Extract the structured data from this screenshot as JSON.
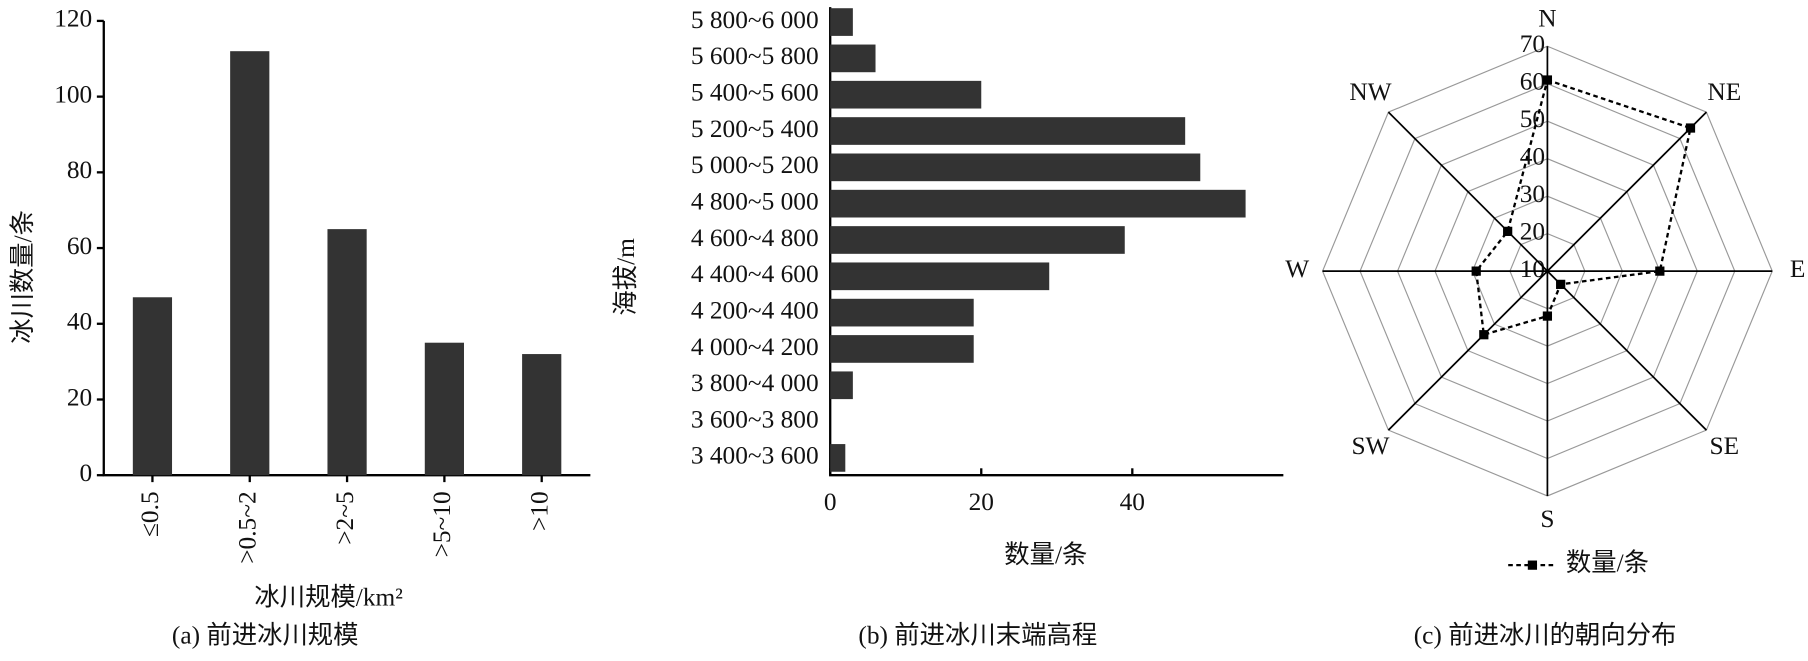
{
  "chart_data": [
    {
      "type": "bar",
      "caption": "(a) 前进冰川规模",
      "xlabel": "冰川规模/km²",
      "ylabel": "冰川数量/条",
      "categories": [
        "≤0.5",
        ">0.5~2",
        ">2~5",
        ">5~10",
        ">10"
      ],
      "values": [
        47,
        112,
        65,
        35,
        32
      ],
      "color": "#333333",
      "ylim": [
        0,
        120
      ],
      "yticks": [
        0,
        20,
        40,
        60,
        80,
        100,
        120
      ]
    },
    {
      "type": "hbar",
      "caption": "(b) 前进冰川末端高程",
      "xlabel": "数量/条",
      "ylabel": "海拔/m",
      "categories": [
        "3 400~3 600",
        "3 600~3 800",
        "3 800~4 000",
        "4 000~4 200",
        "4 200~4 400",
        "4 400~4 600",
        "4 600~4 800",
        "4 800~5 000",
        "5 000~5 200",
        "5 200~5 400",
        "5 400~5 600",
        "5 600~5 800",
        "5 800~6 000"
      ],
      "values": [
        2,
        0,
        3,
        19,
        19,
        29,
        39,
        55,
        49,
        47,
        20,
        6,
        3
      ],
      "color": "#333333",
      "xlim": [
        0,
        60
      ],
      "xticks": [
        0,
        20,
        40
      ]
    },
    {
      "type": "radar",
      "caption": "(c) 前进冰川的朝向分布",
      "categories": [
        "N",
        "NE",
        "E",
        "SE",
        "S",
        "SW",
        "W",
        "NW"
      ],
      "rlim": [
        10,
        70
      ],
      "rticks": [
        10,
        20,
        30,
        40,
        50,
        60,
        70
      ],
      "series": [
        {
          "name": "数量/条",
          "color": "#000000",
          "values": [
            61,
            64,
            40,
            15,
            22,
            34,
            29,
            25
          ]
        }
      ]
    }
  ]
}
